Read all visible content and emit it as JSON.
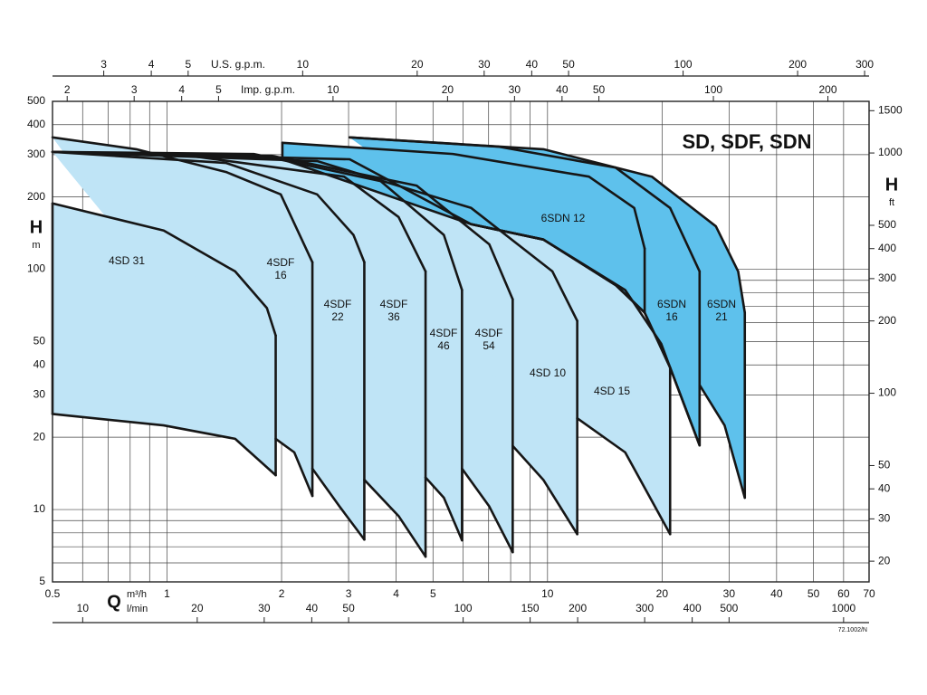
{
  "chart_data": {
    "type": "band",
    "title": "SD, SDF, SDN",
    "x_label": "Q",
    "x_unit": "m³/h",
    "y_label": "H",
    "y_unit": "m",
    "xscale": "log",
    "yscale": "log",
    "grid": true,
    "xlim": [
      0.5,
      70
    ],
    "xticks": [
      0.5,
      1,
      2,
      3,
      4,
      5,
      10,
      20,
      30,
      40,
      50,
      60,
      70
    ],
    "xminor": [
      0.6,
      0.7,
      0.8,
      0.9,
      6,
      7,
      8,
      9
    ],
    "ylim": [
      5,
      500
    ],
    "yticks": [
      5,
      10,
      20,
      30,
      40,
      50,
      100,
      200,
      300,
      400,
      500
    ],
    "yminor": [
      6,
      7,
      8,
      9,
      60,
      70,
      80,
      90
    ],
    "x2_label": "U.S. g.p.m.",
    "x2lim": [
      2.2,
      308.2
    ],
    "x2ticks": [
      3,
      4,
      5,
      10,
      20,
      30,
      40,
      50,
      100,
      200,
      300
    ],
    "x3_label": "Imp. g.p.m.",
    "x3lim": [
      1.83,
      256.6
    ],
    "x3ticks": [
      2,
      3,
      4,
      5,
      10,
      20,
      30,
      40,
      50,
      100,
      200
    ],
    "x4_label": "l/min",
    "x4lim": [
      8.33,
      1166.7
    ],
    "x4ticks": [
      10,
      20,
      30,
      40,
      50,
      100,
      150,
      200,
      300,
      400,
      500,
      1000
    ],
    "y2_label": "H",
    "y2_unit": "ft",
    "y2lim": [
      16.4,
      1640.4
    ],
    "y2ticks": [
      20,
      30,
      40,
      50,
      100,
      200,
      300,
      400,
      500,
      1000,
      1500
    ],
    "note": "72.1002/N",
    "series": [
      {
        "name": "4SD 31",
        "color": "#bfe4f6",
        "x_upper": [
          0.5,
          0.98,
          1.51,
          1.83,
          1.93
        ],
        "upper": [
          188,
          145,
          98,
          69,
          53
        ],
        "x_lower": [
          0.5,
          0.98,
          1.51,
          1.93
        ],
        "lower": [
          25,
          22.4,
          19.7,
          13.9
        ]
      },
      {
        "name": "4SDF 16",
        "color": "#bfe4f6",
        "x_upper": [
          0.5,
          0.83,
          1.43,
          1.99,
          2.41
        ],
        "upper": [
          354,
          316,
          254,
          205,
          107
        ],
        "x_lower": [
          1.93,
          2.16,
          2.41
        ],
        "lower": [
          19.7,
          17.3,
          11.4
        ]
      },
      {
        "name": "4SDF 22",
        "color": "#bfe4f6",
        "x_upper": [
          0.5,
          1.43,
          2.48,
          3.09,
          3.3
        ],
        "upper": [
          308,
          277,
          205,
          139,
          107
        ],
        "x_lower": [
          2.41,
          2.84,
          3.3
        ],
        "lower": [
          14.8,
          10.3,
          7.5
        ]
      },
      {
        "name": "4SDF 36",
        "color": "#bfe4f6",
        "x_upper": [
          0.5,
          1.09,
          2.92,
          4.06,
          4.78
        ],
        "upper": [
          308,
          300,
          243,
          165,
          98
        ],
        "x_lower": [
          3.3,
          4.06,
          4.78
        ],
        "lower": [
          13.3,
          9.4,
          6.37
        ]
      },
      {
        "name": "4SDF 46",
        "color": "#bfe4f6",
        "x_upper": [
          0.5,
          1.69,
          3.64,
          5.34,
          5.96
        ],
        "upper": [
          308,
          302,
          233,
          139,
          82
        ],
        "x_lower": [
          4.78,
          5.34,
          5.96
        ],
        "lower": [
          13.6,
          11.2,
          7.45
        ]
      },
      {
        "name": "4SDF 54",
        "color": "#bfe4f6",
        "x_upper": [
          0.5,
          1.88,
          4.53,
          7.03,
          8.1
        ],
        "upper": [
          308,
          297,
          223,
          127,
          75
        ],
        "x_lower": [
          5.96,
          7.03,
          8.1
        ],
        "lower": [
          14.8,
          10.3,
          6.65
        ]
      },
      {
        "name": "4SD 10",
        "color": "#bfe4f6",
        "x_upper": [
          0.5,
          2.48,
          6.3,
          10.3,
          11.97
        ],
        "upper": [
          308,
          282,
          180,
          98,
          61
        ],
        "x_lower": [
          8.1,
          9.75,
          11.97
        ],
        "lower": [
          18.4,
          13.3,
          7.9
        ]
      },
      {
        "name": "4SD 15",
        "color": "#bfe4f6",
        "x_upper": [
          0.5,
          3.02,
          6.3,
          9.75,
          16,
          19.9,
          21
        ],
        "upper": [
          308,
          287,
          154,
          133,
          82,
          49,
          39
        ],
        "x_lower": [
          11.97,
          16,
          21
        ],
        "lower": [
          24,
          17.3,
          7.9
        ]
      },
      {
        "name": "6SDN 12",
        "color": "#5ec1ec",
        "x_upper": [
          2.01,
          5.64,
          12.85,
          16.9,
          18
        ],
        "upper": [
          336,
          302,
          243,
          180,
          122
        ],
        "x_lower": [
          2.01,
          6.3,
          9.75,
          15.1,
          18
        ],
        "lower": [
          287,
          154,
          133,
          86,
          66
        ]
      },
      {
        "name": "6SDN 16",
        "color": "#5ec1ec",
        "x_upper": [
          3.02,
          7.42,
          15.1,
          21,
          25.1
        ],
        "upper": [
          354,
          324,
          265,
          180,
          98
        ],
        "x_lower": [
          6.3,
          9.75,
          15.1,
          18,
          21,
          25.1
        ],
        "lower": [
          154,
          133,
          86,
          66,
          39,
          18.5
        ]
      },
      {
        "name": "6SDN 21",
        "color": "#5ec1ec",
        "x_upper": [
          3.02,
          9.75,
          18.8,
          27.7,
          31.7,
          33
        ],
        "upper": [
          354,
          316,
          243,
          151,
          98,
          66
        ],
        "x_lower": [
          6.3,
          9.75,
          15.1,
          18,
          21,
          25.1,
          25.1,
          29.2,
          33
        ],
        "lower": [
          154,
          133,
          86,
          66,
          39,
          18.5,
          33,
          22.4,
          11.2
        ]
      }
    ]
  }
}
